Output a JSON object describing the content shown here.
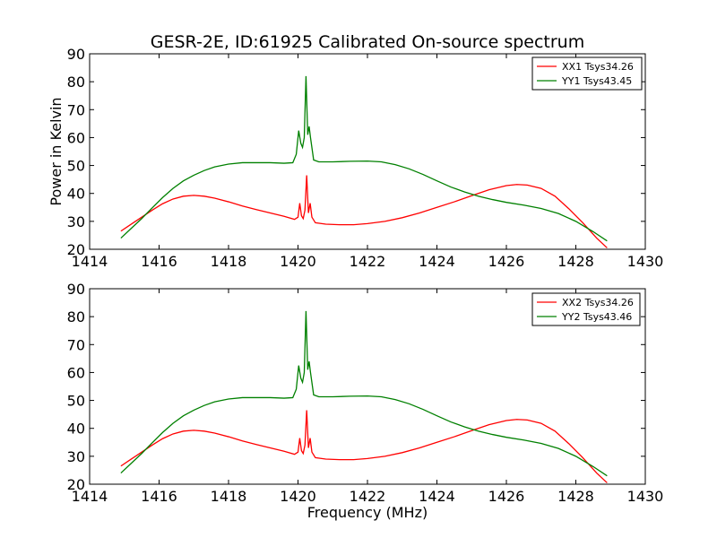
{
  "title": "GESR-2E, ID:61925 Calibrated On-source spectrum",
  "chart_data": [
    {
      "type": "line",
      "title": "GESR-2E, ID:61925 Calibrated On-source spectrum",
      "xlabel": "",
      "ylabel": "Power in Kelvin",
      "xlim": [
        1414,
        1430
      ],
      "ylim": [
        20,
        90
      ],
      "xticks": [
        "1414",
        "1416",
        "1418",
        "1420",
        "1422",
        "1424",
        "1426",
        "1428",
        "1430"
      ],
      "yticks": [
        "20",
        "30",
        "40",
        "50",
        "60",
        "70",
        "80",
        "90"
      ],
      "grid": false,
      "legend_position": "top-right",
      "series": [
        {
          "name": "XX1 Tsys34.26",
          "color": "#ff0000",
          "points": [
            [
              1414.9,
              26.5
            ],
            [
              1415.2,
              29.0
            ],
            [
              1415.5,
              31.5
            ],
            [
              1415.8,
              34.0
            ],
            [
              1416.1,
              36.3
            ],
            [
              1416.4,
              38.0
            ],
            [
              1416.7,
              39.0
            ],
            [
              1417.0,
              39.3
            ],
            [
              1417.3,
              39.0
            ],
            [
              1417.6,
              38.3
            ],
            [
              1418.0,
              37.0
            ],
            [
              1418.4,
              35.5
            ],
            [
              1418.8,
              34.2
            ],
            [
              1419.2,
              33.0
            ],
            [
              1419.6,
              31.8
            ],
            [
              1419.9,
              30.7
            ],
            [
              1420.0,
              31.5
            ],
            [
              1420.05,
              36.5
            ],
            [
              1420.1,
              32.0
            ],
            [
              1420.15,
              31.0
            ],
            [
              1420.2,
              34.0
            ],
            [
              1420.25,
              46.5
            ],
            [
              1420.3,
              33.0
            ],
            [
              1420.35,
              36.5
            ],
            [
              1420.4,
              31.5
            ],
            [
              1420.5,
              29.5
            ],
            [
              1420.8,
              29.0
            ],
            [
              1421.2,
              28.8
            ],
            [
              1421.6,
              28.8
            ],
            [
              1422.0,
              29.2
            ],
            [
              1422.5,
              30.0
            ],
            [
              1423.0,
              31.3
            ],
            [
              1423.5,
              33.0
            ],
            [
              1424.0,
              35.0
            ],
            [
              1424.5,
              37.0
            ],
            [
              1425.0,
              39.2
            ],
            [
              1425.5,
              41.3
            ],
            [
              1426.0,
              42.8
            ],
            [
              1426.3,
              43.2
            ],
            [
              1426.6,
              43.0
            ],
            [
              1427.0,
              41.8
            ],
            [
              1427.4,
              39.0
            ],
            [
              1427.8,
              34.5
            ],
            [
              1428.2,
              29.5
            ],
            [
              1428.6,
              24.0
            ],
            [
              1428.9,
              20.5
            ]
          ]
        },
        {
          "name": "YY1 Tsys43.45",
          "color": "#008000",
          "points": [
            [
              1414.9,
              24.0
            ],
            [
              1415.2,
              27.5
            ],
            [
              1415.5,
              31.0
            ],
            [
              1415.8,
              34.8
            ],
            [
              1416.1,
              38.5
            ],
            [
              1416.4,
              41.8
            ],
            [
              1416.7,
              44.5
            ],
            [
              1417.0,
              46.5
            ],
            [
              1417.3,
              48.2
            ],
            [
              1417.6,
              49.5
            ],
            [
              1418.0,
              50.5
            ],
            [
              1418.4,
              51.0
            ],
            [
              1418.8,
              51.0
            ],
            [
              1419.2,
              51.0
            ],
            [
              1419.6,
              50.8
            ],
            [
              1419.85,
              51.0
            ],
            [
              1419.95,
              54.0
            ],
            [
              1420.02,
              62.5
            ],
            [
              1420.08,
              58.0
            ],
            [
              1420.13,
              56.5
            ],
            [
              1420.18,
              60.0
            ],
            [
              1420.23,
              82.0
            ],
            [
              1420.28,
              61.0
            ],
            [
              1420.32,
              64.0
            ],
            [
              1420.36,
              60.0
            ],
            [
              1420.45,
              52.0
            ],
            [
              1420.6,
              51.3
            ],
            [
              1421.0,
              51.3
            ],
            [
              1421.5,
              51.5
            ],
            [
              1422.0,
              51.6
            ],
            [
              1422.4,
              51.3
            ],
            [
              1422.8,
              50.3
            ],
            [
              1423.2,
              48.8
            ],
            [
              1423.6,
              46.8
            ],
            [
              1424.0,
              44.5
            ],
            [
              1424.4,
              42.3
            ],
            [
              1424.8,
              40.5
            ],
            [
              1425.2,
              39.0
            ],
            [
              1425.6,
              37.8
            ],
            [
              1426.0,
              36.8
            ],
            [
              1426.5,
              35.8
            ],
            [
              1427.0,
              34.6
            ],
            [
              1427.5,
              32.8
            ],
            [
              1428.0,
              30.0
            ],
            [
              1428.5,
              26.3
            ],
            [
              1428.9,
              23.0
            ]
          ]
        }
      ]
    },
    {
      "type": "line",
      "title": "",
      "xlabel": "Frequency (MHz)",
      "ylabel": "",
      "xlim": [
        1414,
        1430
      ],
      "ylim": [
        20,
        90
      ],
      "xticks": [
        "1414",
        "1416",
        "1418",
        "1420",
        "1422",
        "1424",
        "1426",
        "1428",
        "1430"
      ],
      "yticks": [
        "20",
        "30",
        "40",
        "50",
        "60",
        "70",
        "80",
        "90"
      ],
      "grid": false,
      "legend_position": "top-right",
      "series": [
        {
          "name": "XX2 Tsys34.26",
          "color": "#ff0000",
          "points": [
            [
              1414.9,
              26.5
            ],
            [
              1415.2,
              29.0
            ],
            [
              1415.5,
              31.5
            ],
            [
              1415.8,
              34.0
            ],
            [
              1416.1,
              36.3
            ],
            [
              1416.4,
              38.0
            ],
            [
              1416.7,
              39.0
            ],
            [
              1417.0,
              39.3
            ],
            [
              1417.3,
              39.0
            ],
            [
              1417.6,
              38.3
            ],
            [
              1418.0,
              37.0
            ],
            [
              1418.4,
              35.5
            ],
            [
              1418.8,
              34.2
            ],
            [
              1419.2,
              33.0
            ],
            [
              1419.6,
              31.8
            ],
            [
              1419.9,
              30.7
            ],
            [
              1420.0,
              31.5
            ],
            [
              1420.05,
              36.5
            ],
            [
              1420.1,
              32.0
            ],
            [
              1420.15,
              31.0
            ],
            [
              1420.2,
              34.0
            ],
            [
              1420.25,
              46.5
            ],
            [
              1420.3,
              33.0
            ],
            [
              1420.35,
              36.5
            ],
            [
              1420.4,
              31.5
            ],
            [
              1420.5,
              29.5
            ],
            [
              1420.8,
              29.0
            ],
            [
              1421.2,
              28.8
            ],
            [
              1421.6,
              28.8
            ],
            [
              1422.0,
              29.2
            ],
            [
              1422.5,
              30.0
            ],
            [
              1423.0,
              31.3
            ],
            [
              1423.5,
              33.0
            ],
            [
              1424.0,
              35.0
            ],
            [
              1424.5,
              37.0
            ],
            [
              1425.0,
              39.2
            ],
            [
              1425.5,
              41.3
            ],
            [
              1426.0,
              42.8
            ],
            [
              1426.3,
              43.2
            ],
            [
              1426.6,
              43.0
            ],
            [
              1427.0,
              41.8
            ],
            [
              1427.4,
              39.0
            ],
            [
              1427.8,
              34.5
            ],
            [
              1428.2,
              29.5
            ],
            [
              1428.6,
              24.0
            ],
            [
              1428.9,
              20.5
            ]
          ]
        },
        {
          "name": "YY2 Tsys43.46",
          "color": "#008000",
          "points": [
            [
              1414.9,
              24.0
            ],
            [
              1415.2,
              27.5
            ],
            [
              1415.5,
              31.0
            ],
            [
              1415.8,
              34.8
            ],
            [
              1416.1,
              38.5
            ],
            [
              1416.4,
              41.8
            ],
            [
              1416.7,
              44.5
            ],
            [
              1417.0,
              46.5
            ],
            [
              1417.3,
              48.2
            ],
            [
              1417.6,
              49.5
            ],
            [
              1418.0,
              50.5
            ],
            [
              1418.4,
              51.0
            ],
            [
              1418.8,
              51.0
            ],
            [
              1419.2,
              51.0
            ],
            [
              1419.6,
              50.8
            ],
            [
              1419.85,
              51.0
            ],
            [
              1419.95,
              54.0
            ],
            [
              1420.02,
              62.5
            ],
            [
              1420.08,
              58.0
            ],
            [
              1420.13,
              56.5
            ],
            [
              1420.18,
              60.0
            ],
            [
              1420.23,
              82.0
            ],
            [
              1420.28,
              61.0
            ],
            [
              1420.32,
              64.0
            ],
            [
              1420.36,
              60.0
            ],
            [
              1420.45,
              52.0
            ],
            [
              1420.6,
              51.3
            ],
            [
              1421.0,
              51.3
            ],
            [
              1421.5,
              51.5
            ],
            [
              1422.0,
              51.6
            ],
            [
              1422.4,
              51.3
            ],
            [
              1422.8,
              50.3
            ],
            [
              1423.2,
              48.8
            ],
            [
              1423.6,
              46.8
            ],
            [
              1424.0,
              44.5
            ],
            [
              1424.4,
              42.3
            ],
            [
              1424.8,
              40.5
            ],
            [
              1425.2,
              39.0
            ],
            [
              1425.6,
              37.8
            ],
            [
              1426.0,
              36.8
            ],
            [
              1426.5,
              35.8
            ],
            [
              1427.0,
              34.6
            ],
            [
              1427.5,
              32.8
            ],
            [
              1428.0,
              30.0
            ],
            [
              1428.5,
              26.3
            ],
            [
              1428.9,
              23.0
            ]
          ]
        }
      ]
    }
  ]
}
